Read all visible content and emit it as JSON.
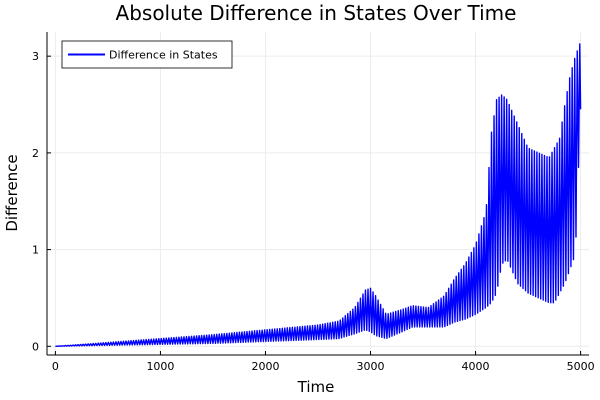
{
  "chart_data": {
    "type": "line",
    "title": "Absolute Difference in States Over Time",
    "xlabel": "Time",
    "ylabel": "Difference",
    "xlim": [
      -80,
      5080
    ],
    "ylim": [
      -0.09,
      3.25
    ],
    "xticks": [
      0,
      1000,
      2000,
      3000,
      4000,
      5000
    ],
    "yticks": [
      0,
      1,
      2,
      3
    ],
    "grid": true,
    "legend_position": "top-left",
    "series": [
      {
        "name": "Difference in States",
        "color": "#0000ff",
        "envelope": {
          "x": [
            0,
            500,
            1000,
            1500,
            2000,
            2500,
            2700,
            2850,
            2950,
            3000,
            3050,
            3150,
            3300,
            3400,
            3550,
            3700,
            3800,
            3900,
            4000,
            4100,
            4150,
            4200,
            4250,
            4300,
            4400,
            4500,
            4600,
            4700,
            4750,
            4800,
            4850,
            4900,
            4950,
            5000
          ],
          "high": [
            0.0,
            0.04,
            0.08,
            0.12,
            0.17,
            0.22,
            0.26,
            0.4,
            0.58,
            0.6,
            0.52,
            0.33,
            0.38,
            0.42,
            0.4,
            0.52,
            0.7,
            0.85,
            1.05,
            1.4,
            2.2,
            2.55,
            2.6,
            2.55,
            2.3,
            2.05,
            2.0,
            1.95,
            2.05,
            2.15,
            2.5,
            2.8,
            3.0,
            3.15
          ],
          "low": [
            0.0,
            0.01,
            0.02,
            0.03,
            0.05,
            0.07,
            0.08,
            0.13,
            0.17,
            0.15,
            0.11,
            0.08,
            0.15,
            0.2,
            0.2,
            0.2,
            0.25,
            0.28,
            0.33,
            0.4,
            0.45,
            0.55,
            0.85,
            0.9,
            0.65,
            0.55,
            0.5,
            0.45,
            0.45,
            0.55,
            0.65,
            0.8,
            0.95,
            2.45
          ]
        }
      }
    ],
    "colors": {
      "line": "#0000ff",
      "grid": "#ececec",
      "axis": "#000000"
    }
  }
}
